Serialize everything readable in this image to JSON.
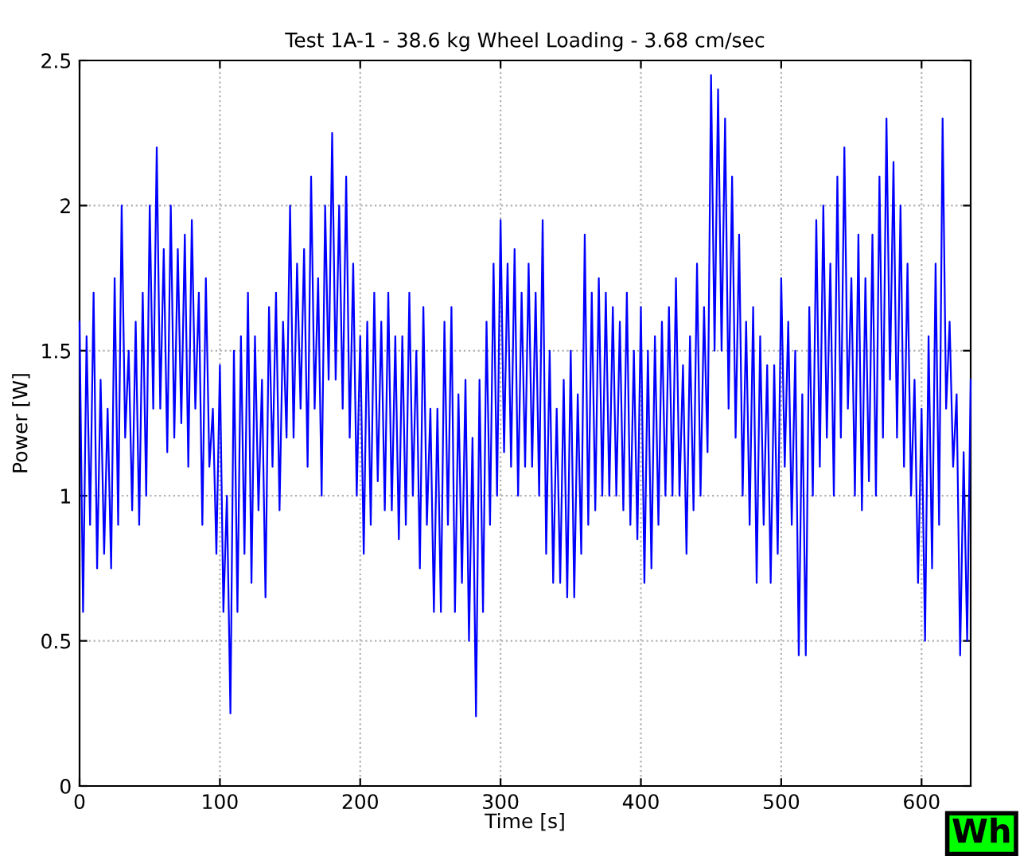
{
  "chart_data": {
    "type": "line",
    "title": "Test 1A-1 - 38.6 kg Wheel Loading - 3.68 cm/sec",
    "xlabel": "Time [s]",
    "ylabel": "Power [W]",
    "xlim": [
      0,
      635
    ],
    "xticks": [
      0,
      100,
      200,
      300,
      400,
      500,
      600
    ],
    "ylim": [
      0,
      2.5
    ],
    "yticks": [
      0,
      0.5,
      1,
      1.5,
      2,
      2.5
    ],
    "grid": true,
    "marker": "none",
    "line_style": "solid",
    "annotations": [
      "Wh"
    ],
    "series": [
      {
        "color": "#0000ff",
        "x": [
          0,
          2.5,
          5,
          7.5,
          10,
          12.5,
          15,
          17.5,
          20,
          22.5,
          25,
          27.5,
          30,
          32.5,
          35,
          37.5,
          40,
          42.5,
          45,
          47.5,
          50,
          52.5,
          55,
          57.5,
          60,
          62.5,
          65,
          67.5,
          70,
          72.5,
          75,
          77.5,
          80,
          82.5,
          85,
          87.5,
          90,
          92.5,
          95,
          97.5,
          100,
          102.5,
          105,
          107.5,
          110,
          112.5,
          115,
          117.5,
          120,
          122.5,
          125,
          127.5,
          130,
          132.5,
          135,
          137.5,
          140,
          142.5,
          145,
          147.5,
          150,
          152.5,
          155,
          157.5,
          160,
          162.5,
          165,
          167.5,
          170,
          172.5,
          175,
          177.5,
          180,
          182.5,
          185,
          187.5,
          190,
          192.5,
          195,
          197.5,
          200,
          202.5,
          205,
          207.5,
          210,
          212.5,
          215,
          217.5,
          220,
          222.5,
          225,
          227.5,
          230,
          232.5,
          235,
          237.5,
          240,
          242.5,
          245,
          247.5,
          250,
          252.5,
          255,
          257.5,
          260,
          262.5,
          265,
          267.5,
          270,
          272.5,
          275,
          277.5,
          280,
          282.5,
          285,
          287.5,
          290,
          292.5,
          295,
          297.5,
          300,
          302.5,
          305,
          307.5,
          310,
          312.5,
          315,
          317.5,
          320,
          322.5,
          325,
          327.5,
          330,
          332.5,
          335,
          337.5,
          340,
          342.5,
          345,
          347.5,
          350,
          352.5,
          355,
          357.5,
          360,
          362.5,
          365,
          367.5,
          370,
          372.5,
          375,
          377.5,
          380,
          382.5,
          385,
          387.5,
          390,
          392.5,
          395,
          397.5,
          400,
          402.5,
          405,
          407.5,
          410,
          412.5,
          415,
          417.5,
          420,
          422.5,
          425,
          427.5,
          430,
          432.5,
          435,
          437.5,
          440,
          442.5,
          445,
          447.5,
          450,
          452.5,
          455,
          457.5,
          460,
          462.5,
          465,
          467.5,
          470,
          472.5,
          475,
          477.5,
          480,
          482.5,
          485,
          487.5,
          490,
          492.5,
          495,
          497.5,
          500,
          502.5,
          505,
          507.5,
          510,
          512.5,
          515,
          517.5,
          520,
          522.5,
          525,
          527.5,
          530,
          532.5,
          535,
          537.5,
          540,
          542.5,
          545,
          547.5,
          550,
          552.5,
          555,
          557.5,
          560,
          562.5,
          565,
          567.5,
          570,
          572.5,
          575,
          577.5,
          580,
          582.5,
          585,
          587.5,
          590,
          592.5,
          595,
          597.5,
          600,
          602.5,
          605,
          607.5,
          610,
          612.5,
          615,
          617.5,
          620,
          622.5,
          625,
          627.5,
          630,
          632.5,
          635
        ],
        "values": [
          1.6,
          0.6,
          1.55,
          0.9,
          1.7,
          0.75,
          1.4,
          0.8,
          1.3,
          0.75,
          1.75,
          0.9,
          2.0,
          1.2,
          1.5,
          0.95,
          1.6,
          0.9,
          1.7,
          1.0,
          2.0,
          1.3,
          2.2,
          1.3,
          1.85,
          1.15,
          2.0,
          1.2,
          1.85,
          1.25,
          1.9,
          1.1,
          1.95,
          1.3,
          1.7,
          0.9,
          1.75,
          1.1,
          1.3,
          0.8,
          1.45,
          0.6,
          1.0,
          0.25,
          1.5,
          0.6,
          1.55,
          0.8,
          1.7,
          0.7,
          1.55,
          0.95,
          1.4,
          0.65,
          1.65,
          1.1,
          1.7,
          0.95,
          1.6,
          1.2,
          2.0,
          1.2,
          1.8,
          1.3,
          1.85,
          1.1,
          2.1,
          1.3,
          1.75,
          1.0,
          2.0,
          1.4,
          2.25,
          1.4,
          2.0,
          1.3,
          2.1,
          1.2,
          1.8,
          1.0,
          1.55,
          0.8,
          1.6,
          0.9,
          1.7,
          1.05,
          1.6,
          0.95,
          1.7,
          0.95,
          1.55,
          0.85,
          1.55,
          0.9,
          1.7,
          1.0,
          1.5,
          0.75,
          1.65,
          0.9,
          1.3,
          0.6,
          1.3,
          0.6,
          1.6,
          0.9,
          1.65,
          0.6,
          1.35,
          0.7,
          1.4,
          0.5,
          1.2,
          0.24,
          1.4,
          0.6,
          1.6,
          0.9,
          1.8,
          1.0,
          1.95,
          1.15,
          1.8,
          1.1,
          1.85,
          1.0,
          1.7,
          1.1,
          1.8,
          1.1,
          1.7,
          1.0,
          1.95,
          0.8,
          1.5,
          0.7,
          1.3,
          0.7,
          1.4,
          0.65,
          1.5,
          0.65,
          1.35,
          0.8,
          1.9,
          0.9,
          1.7,
          0.95,
          1.75,
          1.0,
          1.7,
          1.0,
          1.65,
          1.0,
          1.6,
          0.95,
          1.7,
          0.9,
          1.5,
          0.85,
          1.65,
          0.7,
          1.5,
          0.75,
          1.55,
          0.9,
          1.6,
          1.0,
          1.65,
          1.0,
          1.75,
          1.0,
          1.45,
          0.8,
          1.55,
          0.95,
          1.8,
          1.0,
          1.65,
          1.15,
          2.45,
          1.5,
          2.4,
          1.5,
          2.3,
          1.3,
          2.1,
          1.2,
          1.9,
          1.0,
          1.6,
          0.9,
          1.65,
          0.7,
          1.55,
          0.9,
          1.45,
          0.7,
          1.45,
          0.8,
          1.75,
          1.1,
          1.6,
          0.9,
          1.5,
          0.45,
          1.35,
          0.45,
          1.65,
          1.0,
          1.95,
          1.1,
          2.0,
          1.2,
          1.8,
          1.0,
          2.1,
          1.2,
          2.2,
          1.3,
          1.75,
          1.0,
          1.9,
          0.95,
          1.75,
          1.05,
          1.9,
          1.0,
          2.1,
          1.2,
          2.3,
          1.4,
          2.15,
          1.2,
          2.0,
          1.1,
          1.8,
          1.0,
          1.4,
          0.7,
          1.3,
          0.5,
          1.55,
          0.75,
          1.8,
          0.9,
          2.3,
          1.3,
          1.6,
          1.1,
          1.35,
          0.45,
          1.15,
          0.5,
          1.4
        ]
      }
    ]
  }
}
